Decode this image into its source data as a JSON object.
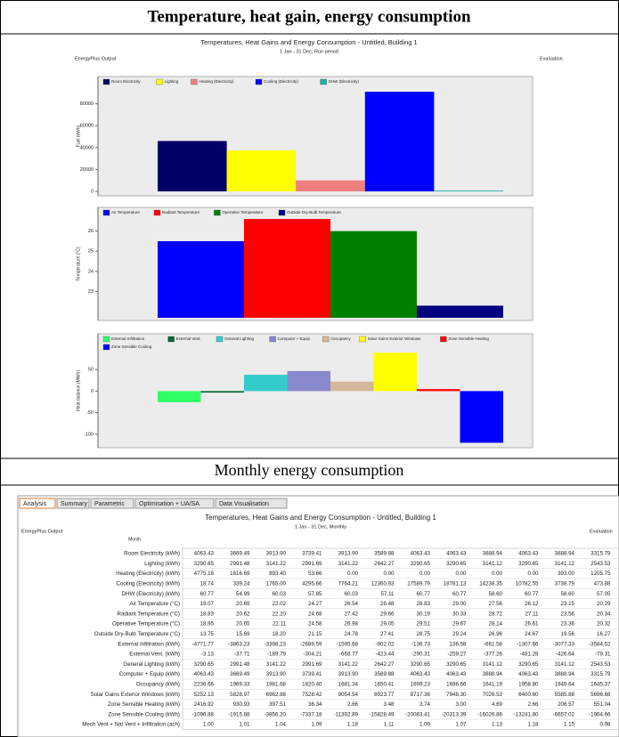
{
  "headings": [
    "Temperature, heat gain, energy consumption",
    "Monthly energy consumption"
  ],
  "report": {
    "title": "Temperatures, Heat Gains and Energy Consumption - Untitled, Building 1",
    "period": "1 Jan - 31 Dec, Run period",
    "source": "EnergyPlus Output",
    "evaluation": "Evaluation"
  },
  "chart_data": [
    {
      "type": "bar",
      "ylabel": "Fuel (kWh)",
      "ylim": [
        0,
        100000
      ],
      "yticks": [
        0,
        20000,
        40000,
        60000,
        80000
      ],
      "series": [
        {
          "name": "Room Electricity",
          "color": "#000066",
          "values": [
            46000
          ]
        },
        {
          "name": "Lighting",
          "color": "#ffff00",
          "values": [
            37500
          ]
        },
        {
          "name": "Heating (Electricity)",
          "color": "#f08080",
          "values": [
            10000
          ]
        },
        {
          "name": "Cooling (Electricity)",
          "color": "#0000ff",
          "values": [
            91000
          ]
        },
        {
          "name": "DHW (Electricity)",
          "color": "#20b2aa",
          "values": [
            700
          ]
        }
      ]
    },
    {
      "type": "bar",
      "ylabel": "Temperature (°C)",
      "ylim": [
        21.7,
        27.0
      ],
      "yticks": [
        23,
        24,
        25,
        26
      ],
      "series": [
        {
          "name": "Air Temperature",
          "color": "#0000ff",
          "values": [
            25.5
          ]
        },
        {
          "name": "Radiant Temperature",
          "color": "#ff0000",
          "values": [
            26.6
          ]
        },
        {
          "name": "Operative Temperature",
          "color": "#008000",
          "values": [
            26.0
          ]
        },
        {
          "name": "Outside Dry-Bulb Temperature",
          "color": "#000080",
          "values": [
            22.3
          ]
        }
      ]
    },
    {
      "type": "bar",
      "ylabel": "Heat balance (MWh)",
      "ylim": [
        -125,
        75
      ],
      "yticks": [
        50,
        0,
        -50,
        -100
      ],
      "series": [
        {
          "name": "External Infiltration",
          "color": "#33ff66",
          "values": [
            -25.8
          ]
        },
        {
          "name": "External Vent.",
          "color": "#006633",
          "values": [
            -3.5
          ]
        },
        {
          "name": "General Lighting",
          "color": "#33cccc",
          "values": [
            37.7
          ]
        },
        {
          "name": "Computer + Equip",
          "color": "#8888cc",
          "values": [
            46.4
          ]
        },
        {
          "name": "Occupancy",
          "color": "#d4b89a",
          "values": [
            21.9
          ]
        },
        {
          "name": "Solar Gains Exterior Windows",
          "color": "#ffff00",
          "values": [
            88.9
          ]
        },
        {
          "name": "Zone Sensible Heating",
          "color": "#ff0000",
          "values": [
            4.6
          ]
        },
        {
          "name": "Zone Sensible Cooling",
          "color": "#0000ff",
          "values": [
            -119.7
          ]
        }
      ]
    }
  ],
  "tabs": [
    "Analysis",
    "Summary",
    "Parametric",
    "Optimisation + UA/SA",
    "Data Visualisation"
  ],
  "table": {
    "title": "Temperatures, Heat Gains and Energy Consumption - Untitled, Building 1",
    "period": "1 Jan - 31 Dec, Monthly",
    "source": "EnergyPlus Output",
    "evaluation": "Evaluation",
    "month_label": "Month",
    "rows": [
      {
        "label": "Room Electricity (kWh)",
        "values": [
          "4063.43",
          "3669.49",
          "3913.90",
          "3739.41",
          "3913.90",
          "3589.88",
          "4063.43",
          "4063.43",
          "3888.94",
          "4063.43",
          "3888.94",
          "3315.79"
        ]
      },
      {
        "label": "Lighting (kWh)",
        "values": [
          "3290.65",
          "2991.48",
          "3141.22",
          "2991.69",
          "3141.22",
          "2642.27",
          "3290.65",
          "3290.65",
          "3141.12",
          "3290.65",
          "3141.12",
          "2543.53"
        ]
      },
      {
        "label": "Heating (Electricity) (kWh)",
        "values": [
          "4775.18",
          "1816.69",
          "893.40",
          "53.66",
          "0.00",
          "0.00",
          "0.00",
          "0.00",
          "0.00",
          "0.00",
          "393.00",
          "1205.75"
        ]
      },
      {
        "label": "Cooling (Electricity) (kWh)",
        "values": [
          "18.74",
          "339.24",
          "1765.00",
          "4295.66",
          "7764.21",
          "12360.93",
          "17589.79",
          "18781.13",
          "14238.35",
          "10782.55",
          "3738.79",
          "473.88"
        ]
      },
      {
        "label": "DHW (Electricity) (kWh)",
        "values": [
          "60.77",
          "54.99",
          "60.03",
          "57.85",
          "60.03",
          "57.11",
          "60.77",
          "60.77",
          "58.60",
          "60.77",
          "58.60",
          "57.05"
        ]
      },
      {
        "label": "Air Temperature (°C)",
        "values": [
          "19.07",
          "20.69",
          "22.02",
          "24.27",
          "26.54",
          "28.48",
          "28.83",
          "29.00",
          "27.56",
          "26.12",
          "23.15",
          "20.29"
        ]
      },
      {
        "label": "Radiant Temperature (°C)",
        "values": [
          "18.83",
          "20.62",
          "22.20",
          "24.68",
          "27.42",
          "29.66",
          "30.19",
          "30.33",
          "28.72",
          "27.11",
          "23.56",
          "20.34"
        ]
      },
      {
        "label": "Operative Temperature (°C)",
        "values": [
          "18.95",
          "20.65",
          "22.11",
          "24.58",
          "26.98",
          "29.05",
          "29.51",
          "29.67",
          "28.14",
          "26.61",
          "23.36",
          "20.32"
        ]
      },
      {
        "label": "Outside Dry-Bulb Temperature (°C)",
        "values": [
          "13.75",
          "15.69",
          "18.20",
          "21.15",
          "24.78",
          "27.41",
          "28.75",
          "29.24",
          "26.96",
          "24.67",
          "19.56",
          "16.27"
        ]
      },
      {
        "label": "External Infiltration (kWh)",
        "values": [
          "-4771.77",
          "-3863.23",
          "-3398.23",
          "-2689.59",
          "-1595.68",
          "-902.02",
          "-136.73",
          "136.58",
          "-661.58",
          "-1307.66",
          "-3077.33",
          "-3584.52"
        ]
      },
      {
        "label": "External Vent. (kWh)",
        "values": [
          "-3.13",
          "-37.71",
          "-189.79",
          "-304.21",
          "-668.77",
          "-423.44",
          "-290.31",
          "-259.27",
          "-377.26",
          "-481.28",
          "-426.64",
          "-79.31"
        ]
      },
      {
        "label": "General Lighting (kWh)",
        "values": [
          "3290.65",
          "2991.48",
          "3141.22",
          "2991.69",
          "3141.22",
          "2642.27",
          "3290.65",
          "3290.65",
          "3141.12",
          "3290.65",
          "3141.12",
          "2543.53"
        ]
      },
      {
        "label": "Computer + Equip (kWh)",
        "values": [
          "4063.43",
          "3669.49",
          "3913.90",
          "3739.41",
          "3913.90",
          "3589.88",
          "4063.43",
          "4063.43",
          "3888.94",
          "4063.43",
          "3888.94",
          "3315.79"
        ]
      },
      {
        "label": "Occupancy (kWh)",
        "values": [
          "2236.66",
          "1969.33",
          "1981.68",
          "1820.40",
          "1681.34",
          "1650.41",
          "1699.23",
          "1696.66",
          "1641.19",
          "1958.80",
          "1949.64",
          "1645.37"
        ]
      },
      {
        "label": "Solar Gains Exterior Windows (kWh)",
        "values": [
          "5252.13",
          "5828.97",
          "6962.88",
          "7528.42",
          "9054.54",
          "8923.77",
          "8717.36",
          "7948.30",
          "7026.53",
          "6400.60",
          "5585.88",
          "5696.68"
        ]
      },
      {
        "label": "Zone Sensible Heating (kWh)",
        "values": [
          "2416.92",
          "930.93",
          "397.51",
          "36.34",
          "2.66",
          "3.48",
          "3.74",
          "3.00",
          "4.69",
          "2.66",
          "206.57",
          "551.04"
        ]
      },
      {
        "label": "Zone Sensible Cooling (kWh)",
        "values": [
          "-1096.88",
          "-1915.88",
          "-3856.20",
          "-7337.18",
          "-11392.89",
          "-15828.49",
          "-20083.41",
          "-20313.39",
          "-16026.86",
          "-13241.80",
          "-6657.02",
          "-1964.66"
        ]
      },
      {
        "label": "Mech Vent + Nat Vent + Infiltration (ach)",
        "values": [
          "1.00",
          "1.01",
          "1.04",
          "1.09",
          "1.18",
          "1.11",
          "1.09",
          "1.07",
          "1.13",
          "1.18",
          "1.15",
          "0.98"
        ]
      }
    ]
  }
}
